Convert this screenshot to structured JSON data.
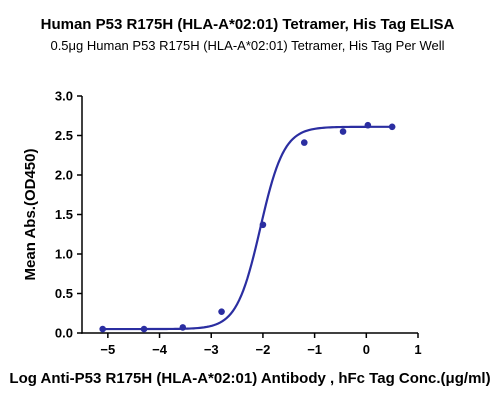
{
  "chart_data": {
    "type": "scatter",
    "title": "Human P53 R175H (HLA-A*02:01) Tetramer, His Tag ELISA",
    "subtitle": "0.5μg Human P53 R175H (HLA-A*02:01) Tetramer, His Tag Per Well",
    "xlabel": "Log Anti-P53 R175H (HLA-A*02:01) Antibody , hFc Tag Conc.(μg/ml)",
    "ylabel": "Mean Abs.(OD450)",
    "xlim": [
      -5.5,
      1.0
    ],
    "ylim": [
      0,
      3.0
    ],
    "x_ticks": [
      -5,
      -4,
      -3,
      -2,
      -1,
      0,
      1
    ],
    "y_ticks": [
      0.0,
      0.5,
      1.0,
      1.5,
      2.0,
      2.5,
      3.0
    ],
    "y_tick_labels": [
      "0.0",
      "0.5",
      "1.0",
      "1.5",
      "2.0",
      "2.5",
      "3.0"
    ],
    "grid": false,
    "series": [
      {
        "x": [
          -5.1,
          -4.3,
          -3.55,
          -2.8,
          -2.0,
          -1.2,
          -0.45,
          0.03,
          0.5
        ],
        "y": [
          0.05,
          0.05,
          0.07,
          0.27,
          1.37,
          2.41,
          2.55,
          2.63,
          2.61
        ]
      }
    ],
    "fit": {
      "model": "4PL",
      "bottom": 0.05,
      "top": 2.61,
      "logEC50": -2.05,
      "hill": 1.9
    },
    "colors": {
      "series": "#2B2EA1",
      "axis": "#000000"
    }
  }
}
